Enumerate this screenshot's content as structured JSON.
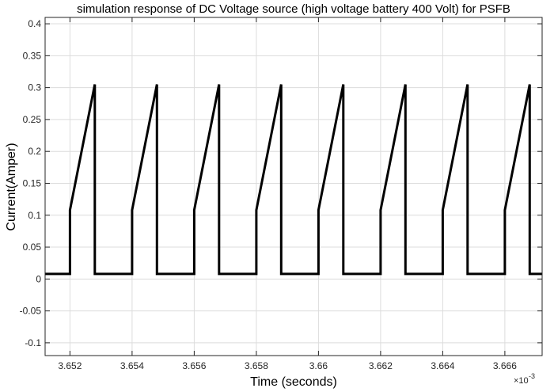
{
  "chart_data": {
    "type": "line",
    "title": "simulation response of DC Voltage source (high voltage battery  400 Volt) for PSFB",
    "xlabel": "Time (seconds)",
    "ylabel": "Current(Amper)",
    "x_exponent_label": "×10",
    "x_exponent_power": "-3",
    "xlim": [
      3.6512,
      3.6672
    ],
    "ylim": [
      -0.12,
      0.41
    ],
    "xticks": [
      3.652,
      3.654,
      3.656,
      3.658,
      3.66,
      3.662,
      3.664,
      3.666
    ],
    "xtick_labels": [
      "3.652",
      "3.654",
      "3.656",
      "3.658",
      "3.66",
      "3.662",
      "3.664",
      "3.666"
    ],
    "yticks": [
      -0.1,
      -0.05,
      0,
      0.05,
      0.1,
      0.15,
      0.2,
      0.25,
      0.3,
      0.35,
      0.4
    ],
    "ytick_labels": [
      "-0.1",
      "-0.05",
      "0",
      "0.05",
      "0.1",
      "0.15",
      "0.2",
      "0.25",
      "0.3",
      "0.35",
      "0.4"
    ],
    "grid": true,
    "series": [
      {
        "color": "#000000",
        "x": [
          3.6512,
          3.652,
          3.652,
          3.6528,
          3.6528,
          3.654,
          3.654,
          3.6548,
          3.6548,
          3.656,
          3.656,
          3.6568,
          3.6568,
          3.658,
          3.658,
          3.6588,
          3.6588,
          3.66,
          3.66,
          3.6608,
          3.6608,
          3.662,
          3.662,
          3.6628,
          3.6628,
          3.664,
          3.664,
          3.6648,
          3.6648,
          3.666,
          3.666,
          3.6668,
          3.6668,
          3.6672
        ],
        "y": [
          0.008,
          0.008,
          0.108,
          0.305,
          0.008,
          0.008,
          0.108,
          0.305,
          0.008,
          0.008,
          0.108,
          0.305,
          0.008,
          0.008,
          0.108,
          0.305,
          0.008,
          0.008,
          0.108,
          0.305,
          0.008,
          0.008,
          0.108,
          0.305,
          0.008,
          0.008,
          0.108,
          0.305,
          0.008,
          0.008,
          0.108,
          0.305,
          0.008,
          0.008
        ]
      }
    ]
  }
}
